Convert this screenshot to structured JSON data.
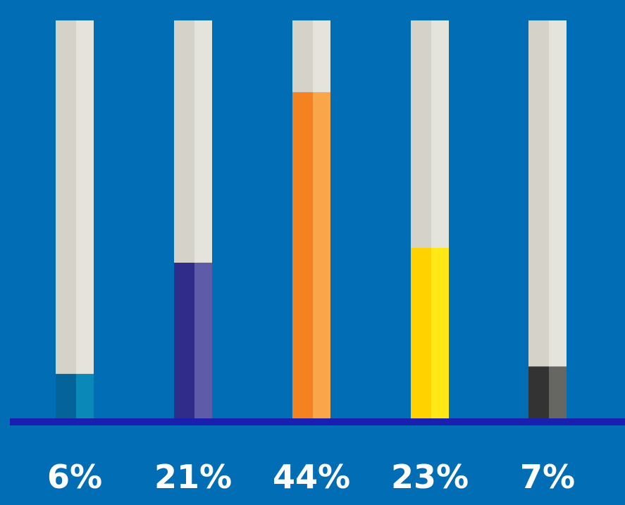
{
  "background_color": "#006db5",
  "baseline_color": "#1a1fb0",
  "track_colors": {
    "left": "#d4d2c9",
    "right": "#e4e3dc"
  },
  "chart_data": {
    "type": "bar",
    "title": "",
    "xlabel": "",
    "ylabel": "",
    "ylim": [
      0,
      100
    ],
    "grid": false,
    "legend": "none",
    "categories": [
      "",
      "",
      "",
      "",
      ""
    ],
    "values": [
      6,
      21,
      44,
      23,
      7
    ],
    "labels": [
      "6%",
      "21%",
      "44%",
      "23%",
      "7%"
    ],
    "colors": [
      {
        "main": "#046499",
        "highlight": "#0a88b8"
      },
      {
        "main": "#302d8a",
        "highlight": "#5e5ca8"
      },
      {
        "main": "#f58220",
        "highlight": "#f9a64a"
      },
      {
        "main": "#ffd200",
        "highlight": "#ffe816"
      },
      {
        "main": "#333333",
        "highlight": "#666663"
      }
    ]
  }
}
